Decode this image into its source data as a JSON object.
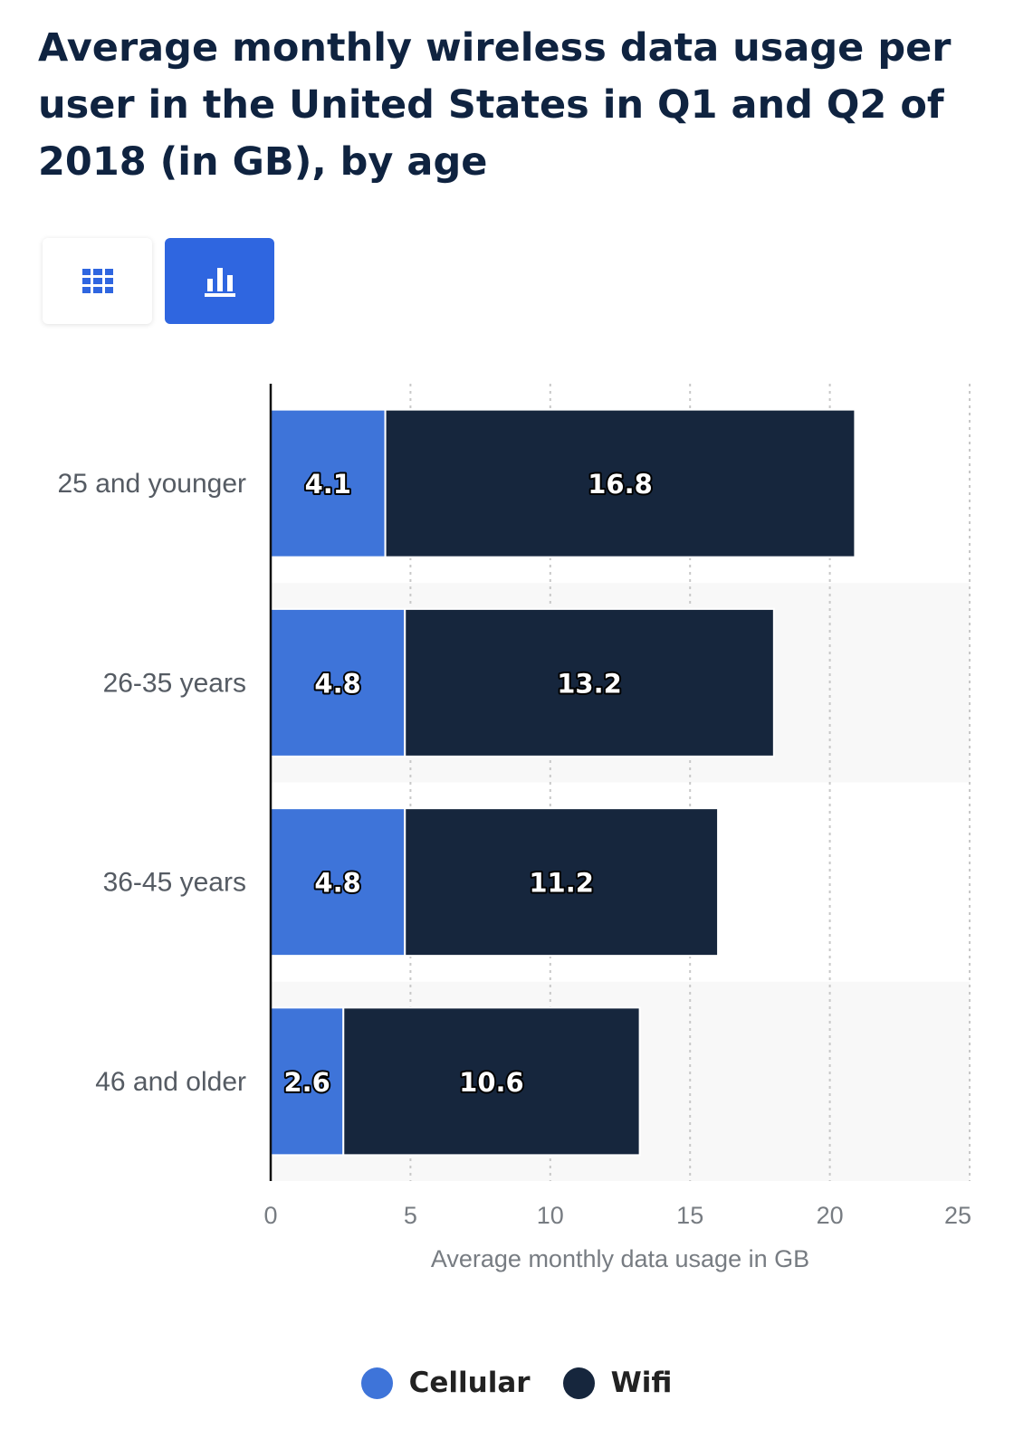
{
  "header": {
    "title": "Average monthly wireless data usage per user in the United States in Q1 and Q2 of 2018 (in GB), by age"
  },
  "view_toggle": {
    "table_icon": "grid-icon",
    "chart_icon": "bar-chart-icon",
    "active": "chart",
    "accent_color": "#2f66e0"
  },
  "chart_data": {
    "type": "bar",
    "orientation": "horizontal",
    "stacked": true,
    "categories": [
      "25 and younger",
      "26-35 years",
      "36-45 years",
      "46 and older"
    ],
    "series": [
      {
        "name": "Cellular",
        "color": "#3e74d9",
        "values": [
          4.1,
          4.8,
          4.8,
          2.6
        ]
      },
      {
        "name": "Wifi",
        "color": "#16263d",
        "values": [
          16.8,
          13.2,
          11.2,
          10.6
        ]
      }
    ],
    "data_labels": [
      [
        "4.1",
        "4.8",
        "4.8",
        "2.6"
      ],
      [
        "16.8",
        "13.2",
        "11.2",
        "10.6"
      ]
    ],
    "xlabel": "Average monthly data usage in GB",
    "xlim": [
      0,
      25
    ],
    "xticks": [
      0,
      5,
      10,
      15,
      20,
      25
    ],
    "xtick_labels": [
      "0",
      "5",
      "10",
      "15",
      "20",
      "25"
    ],
    "grid": true,
    "legend": "bottom-center"
  }
}
